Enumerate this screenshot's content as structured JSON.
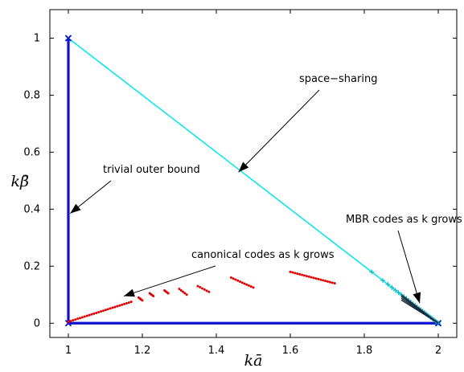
{
  "chart_data": {
    "type": "line",
    "xlabel": "kā",
    "ylabel": "kβ̄",
    "xlim": [
      0.95,
      2.05
    ],
    "ylim": [
      -0.05,
      1.1
    ],
    "xticks": [
      1,
      1.2,
      1.4,
      1.6,
      1.8,
      2
    ],
    "xtick_labels": [
      "1",
      "1.2",
      "1.4",
      "1.6",
      "1.8",
      "2"
    ],
    "yticks": [
      0,
      0.2,
      0.4,
      0.6,
      0.8,
      1
    ],
    "ytick_labels": [
      "0",
      "0.2",
      "0.4",
      "0.6",
      "0.8",
      "1"
    ],
    "grid": false,
    "series": [
      {
        "role": "space-sharing",
        "color": "#00e5ee",
        "marker": "x",
        "points": [
          [
            1,
            1
          ],
          [
            2,
            0
          ]
        ]
      },
      {
        "role": "trivial outer bound",
        "color": "#1010d0",
        "marker": "x",
        "points": [
          [
            1,
            1
          ],
          [
            1,
            0
          ],
          [
            2,
            0
          ]
        ]
      },
      {
        "role": "canonical codes as k grows",
        "color": "#e00000",
        "marker": "dot",
        "segments": [
          [
            [
              1.6,
              0.18
            ],
            [
              1.72,
              0.14
            ]
          ],
          [
            [
              1.44,
              0.16
            ],
            [
              1.5,
              0.125
            ]
          ],
          [
            [
              1.35,
              0.13
            ],
            [
              1.38,
              0.11
            ]
          ],
          [
            [
              1.3,
              0.12
            ],
            [
              1.32,
              0.1
            ]
          ],
          [
            [
              1.26,
              0.115
            ],
            [
              1.27,
              0.105
            ]
          ],
          [
            [
              1.22,
              0.105
            ],
            [
              1.23,
              0.095
            ]
          ],
          [
            [
              1.19,
              0.09
            ],
            [
              1.2,
              0.08
            ]
          ],
          [
            [
              1.0,
              0.005
            ],
            [
              1.17,
              0.075
            ]
          ]
        ]
      },
      {
        "role": "MBR codes as k grows",
        "color": "#00b0c0",
        "marker": "+",
        "range": [
          1.82,
          2.0
        ]
      }
    ],
    "annotations": [
      {
        "text": "space−sharing",
        "arrow_to": [
          1.46,
          0.53
        ]
      },
      {
        "text": "trivial outer bound",
        "arrow_to": [
          1.005,
          0.385
        ]
      },
      {
        "text": "canonical codes as k grows",
        "arrow_to": [
          1.15,
          0.095
        ]
      },
      {
        "text": "MBR codes as k grows",
        "arrow_to": [
          1.95,
          0.07
        ]
      }
    ]
  }
}
